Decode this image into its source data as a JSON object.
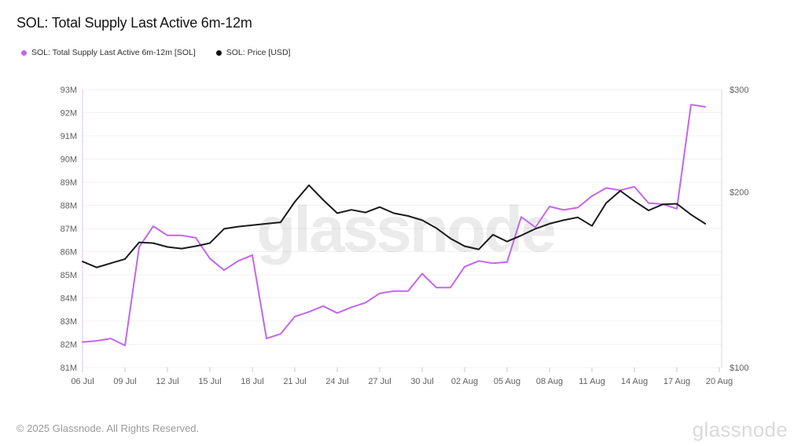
{
  "header": {
    "title": "SOL: Total Supply Last Active 6m-12m"
  },
  "legend": [
    {
      "label": "SOL: Total Supply Last Active 6m-12m [SOL]",
      "color": "#c266ee"
    },
    {
      "label": "SOL: Price [USD]",
      "color": "#111111"
    }
  ],
  "watermark": "glassnode",
  "footer": {
    "copyright": "© 2025 Glassnode. All Rights Reserved.",
    "brand": "glassnode"
  },
  "chart_data": {
    "type": "line",
    "title": "SOL: Total Supply Last Active 6m-12m",
    "x": [
      "06 Jul",
      "07 Jul",
      "08 Jul",
      "09 Jul",
      "10 Jul",
      "11 Jul",
      "12 Jul",
      "13 Jul",
      "14 Jul",
      "15 Jul",
      "16 Jul",
      "17 Jul",
      "18 Jul",
      "19 Jul",
      "20 Jul",
      "21 Jul",
      "22 Jul",
      "23 Jul",
      "24 Jul",
      "25 Jul",
      "26 Jul",
      "27 Jul",
      "28 Jul",
      "29 Jul",
      "30 Jul",
      "31 Jul",
      "01 Aug",
      "02 Aug",
      "03 Aug",
      "04 Aug",
      "05 Aug",
      "06 Aug",
      "07 Aug",
      "08 Aug",
      "09 Aug",
      "10 Aug",
      "11 Aug",
      "12 Aug",
      "13 Aug",
      "14 Aug",
      "15 Aug",
      "16 Aug",
      "17 Aug",
      "18 Aug",
      "19 Aug"
    ],
    "x_ticks": [
      "06 Jul",
      "09 Jul",
      "12 Jul",
      "15 Jul",
      "18 Jul",
      "21 Jul",
      "24 Jul",
      "27 Jul",
      "30 Jul",
      "02 Aug",
      "05 Aug",
      "08 Aug",
      "11 Aug",
      "14 Aug",
      "17 Aug",
      "20 Aug"
    ],
    "series": [
      {
        "name": "SOL: Total Supply Last Active 6m-12m [SOL]",
        "axis": "left",
        "unit": "M SOL",
        "color": "#c266ee",
        "values": [
          82.1,
          82.15,
          82.25,
          81.95,
          86.2,
          87.1,
          86.7,
          86.7,
          86.6,
          85.7,
          85.2,
          85.6,
          85.85,
          82.25,
          82.45,
          83.2,
          83.4,
          83.65,
          83.35,
          83.6,
          83.8,
          84.2,
          84.3,
          84.3,
          85.05,
          84.45,
          84.45,
          85.35,
          85.6,
          85.5,
          85.55,
          87.5,
          87.05,
          87.95,
          87.8,
          87.9,
          88.4,
          88.75,
          88.65,
          88.8,
          88.1,
          88.05,
          87.85,
          92.35,
          92.25
        ]
      },
      {
        "name": "SOL: Price [USD]",
        "axis": "right",
        "unit": "USD",
        "color": "#1a1a1c",
        "values": [
          152,
          148.5,
          151,
          153.5,
          164,
          163.5,
          161,
          160,
          161.5,
          163.5,
          173,
          174.5,
          175.5,
          176.5,
          177.5,
          192.5,
          205.5,
          194,
          184,
          186.5,
          184.5,
          188.5,
          184,
          182,
          179,
          173.5,
          166.5,
          161.5,
          159.5,
          169,
          164.5,
          168.5,
          173,
          176.5,
          179,
          181,
          175,
          191.5,
          201,
          193,
          186,
          190.5,
          191,
          183,
          176.5
        ]
      }
    ],
    "left_axis": {
      "scale": "linear",
      "min": 81,
      "max": 93,
      "ticks": [
        {
          "label": "81M",
          "value": 81
        },
        {
          "label": "82M",
          "value": 82
        },
        {
          "label": "83M",
          "value": 83
        },
        {
          "label": "84M",
          "value": 84
        },
        {
          "label": "85M",
          "value": 85
        },
        {
          "label": "86M",
          "value": 86
        },
        {
          "label": "87M",
          "value": 87
        },
        {
          "label": "88M",
          "value": 88
        },
        {
          "label": "89M",
          "value": 89
        },
        {
          "label": "90M",
          "value": 90
        },
        {
          "label": "91M",
          "value": 91
        },
        {
          "label": "92M",
          "value": 92
        },
        {
          "label": "93M",
          "value": 93
        }
      ]
    },
    "right_axis": {
      "scale": "log",
      "min": 100,
      "max": 300,
      "ticks": [
        {
          "label": "$100",
          "value": 100
        },
        {
          "label": "$200",
          "value": 200
        },
        {
          "label": "$300",
          "value": 300
        }
      ]
    },
    "grid": true,
    "legend_position": "top-left"
  }
}
